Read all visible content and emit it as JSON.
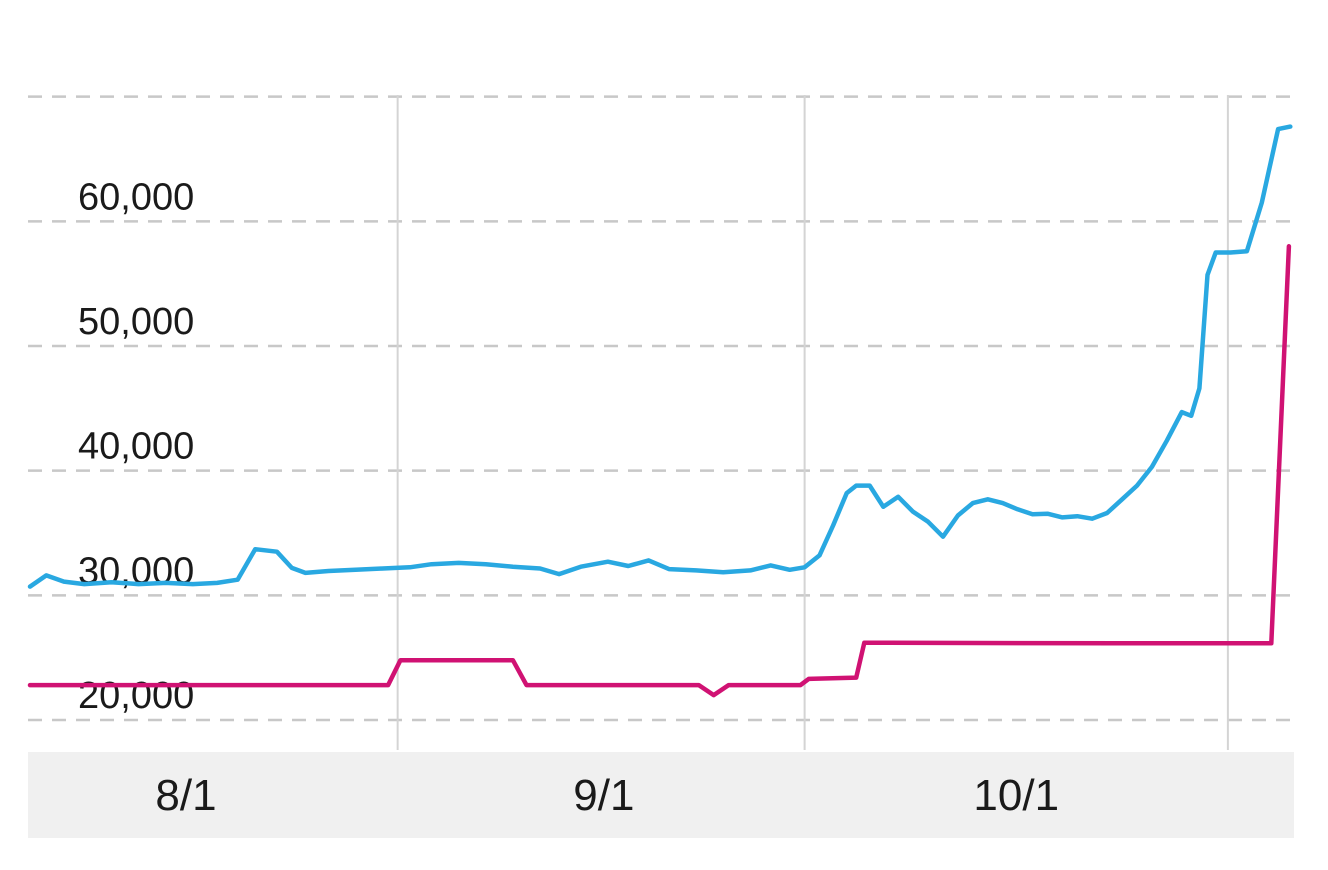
{
  "chart_data": {
    "type": "line",
    "title": "",
    "x_axis": {
      "unit": "date",
      "labels": [
        {
          "label": "8/1",
          "day": 11.5
        },
        {
          "label": "9/1",
          "day": 42.3
        },
        {
          "label": "10/1",
          "day": 72.7
        }
      ],
      "gridline_days": [
        27.1,
        57.1,
        88.3
      ],
      "domain_days": [
        0,
        92.9
      ]
    },
    "y_axis": {
      "ticks": [
        {
          "value": 20000,
          "label": "20,000"
        },
        {
          "value": 30000,
          "label": "30,000"
        },
        {
          "value": 40000,
          "label": "40,000"
        },
        {
          "value": 50000,
          "label": "50,000"
        },
        {
          "value": 60000,
          "label": "60,000"
        }
      ],
      "gridline_values": [
        20000,
        30000,
        40000,
        50000,
        60000,
        70000
      ],
      "range": [
        20000,
        70000
      ]
    },
    "grid": {
      "horizontal_style": "dashed",
      "vertical_style": "solid"
    },
    "legend": "none",
    "series": [
      {
        "name": "blue-series",
        "color": "#29a8e1",
        "points": [
          [
            0,
            30700
          ],
          [
            1.2,
            31600
          ],
          [
            2.5,
            31100
          ],
          [
            4,
            30900
          ],
          [
            6,
            31050
          ],
          [
            8,
            30900
          ],
          [
            10,
            31000
          ],
          [
            12,
            30900
          ],
          [
            13.8,
            31000
          ],
          [
            15.3,
            31250
          ],
          [
            16.6,
            33700
          ],
          [
            18.2,
            33500
          ],
          [
            19.3,
            32200
          ],
          [
            20.3,
            31800
          ],
          [
            22,
            31950
          ],
          [
            24,
            32050
          ],
          [
            26,
            32150
          ],
          [
            28,
            32250
          ],
          [
            29.6,
            32500
          ],
          [
            31.6,
            32600
          ],
          [
            33.6,
            32500
          ],
          [
            35.6,
            32300
          ],
          [
            37.6,
            32150
          ],
          [
            39,
            31700
          ],
          [
            40.6,
            32300
          ],
          [
            42.6,
            32700
          ],
          [
            44.1,
            32350
          ],
          [
            45.6,
            32800
          ],
          [
            47.1,
            32100
          ],
          [
            49.1,
            32000
          ],
          [
            51.1,
            31850
          ],
          [
            53.1,
            32000
          ],
          [
            54.6,
            32400
          ],
          [
            56,
            32050
          ],
          [
            57.1,
            32250
          ],
          [
            58.2,
            33200
          ],
          [
            59.2,
            35600
          ],
          [
            60.2,
            38200
          ],
          [
            60.9,
            38800
          ],
          [
            61.9,
            38800
          ],
          [
            62.9,
            37100
          ],
          [
            64,
            37900
          ],
          [
            65.1,
            36700
          ],
          [
            66.2,
            35900
          ],
          [
            67.3,
            34700
          ],
          [
            68.4,
            36400
          ],
          [
            69.5,
            37400
          ],
          [
            70.6,
            37700
          ],
          [
            71.7,
            37400
          ],
          [
            72.8,
            36900
          ],
          [
            73.9,
            36500
          ],
          [
            75,
            36550
          ],
          [
            76.1,
            36250
          ],
          [
            77.2,
            36350
          ],
          [
            78.3,
            36150
          ],
          [
            79.4,
            36600
          ],
          [
            80.5,
            37700
          ],
          [
            81.6,
            38800
          ],
          [
            82.7,
            40300
          ],
          [
            83.8,
            42400
          ],
          [
            84.9,
            44700
          ],
          [
            85.6,
            44400
          ],
          [
            86.2,
            46600
          ],
          [
            86.8,
            55700
          ],
          [
            87.4,
            57500
          ],
          [
            88.5,
            57500
          ],
          [
            89.7,
            57600
          ],
          [
            90.8,
            61500
          ],
          [
            92,
            67400
          ],
          [
            92.9,
            67600
          ]
        ]
      },
      {
        "name": "pink-series",
        "color": "#d01273",
        "points": [
          [
            0,
            22800
          ],
          [
            26.4,
            22800
          ],
          [
            27.3,
            24800
          ],
          [
            35.6,
            24800
          ],
          [
            36.6,
            22800
          ],
          [
            49.3,
            22800
          ],
          [
            50.4,
            22000
          ],
          [
            51.5,
            22800
          ],
          [
            56.8,
            22800
          ],
          [
            57.4,
            23300
          ],
          [
            60.9,
            23400
          ],
          [
            61.5,
            26200
          ],
          [
            80,
            26150
          ],
          [
            91.5,
            26150
          ],
          [
            92.8,
            58000
          ]
        ]
      }
    ]
  },
  "colors": {
    "background": "#ffffff",
    "h_gridline": "#c8c8c8",
    "v_gridline": "#d4d4d4",
    "axis_band": "#f0f0f0",
    "label_text": "#1a1a1a"
  }
}
